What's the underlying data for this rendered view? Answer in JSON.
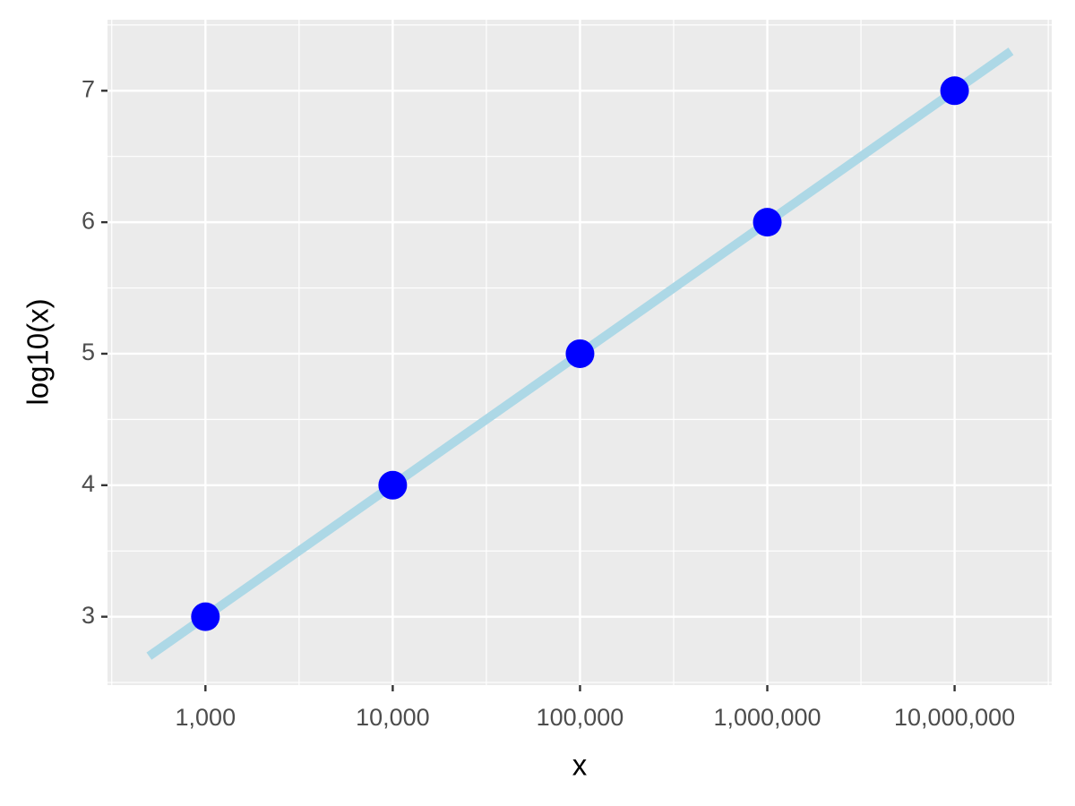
{
  "chart_data": {
    "type": "scatter",
    "x_label": "x",
    "y_label": "log10(x)",
    "x_log": true,
    "xlim": [
      300,
      33000000
    ],
    "xticks": [
      {
        "value": 1000,
        "label": "1,000"
      },
      {
        "value": 10000,
        "label": "10,000"
      },
      {
        "value": 100000,
        "label": "100,000"
      },
      {
        "value": 1000000,
        "label": "1,000,000"
      },
      {
        "value": 10000000,
        "label": "10,000,000"
      }
    ],
    "ylim": [
      2.48,
      7.54
    ],
    "yticks": [
      3,
      4,
      5,
      6,
      7
    ],
    "grid": true,
    "minor_grid": true,
    "series": [
      {
        "type": "line",
        "color": "#add8e6",
        "x": [
          500,
          20000000
        ],
        "values": [
          2.7,
          7.3
        ]
      },
      {
        "type": "scatter",
        "color": "#0000ff",
        "x": [
          1000,
          10000,
          100000,
          1000000,
          10000000
        ],
        "values": [
          3,
          4,
          5,
          6,
          7
        ]
      }
    ]
  }
}
